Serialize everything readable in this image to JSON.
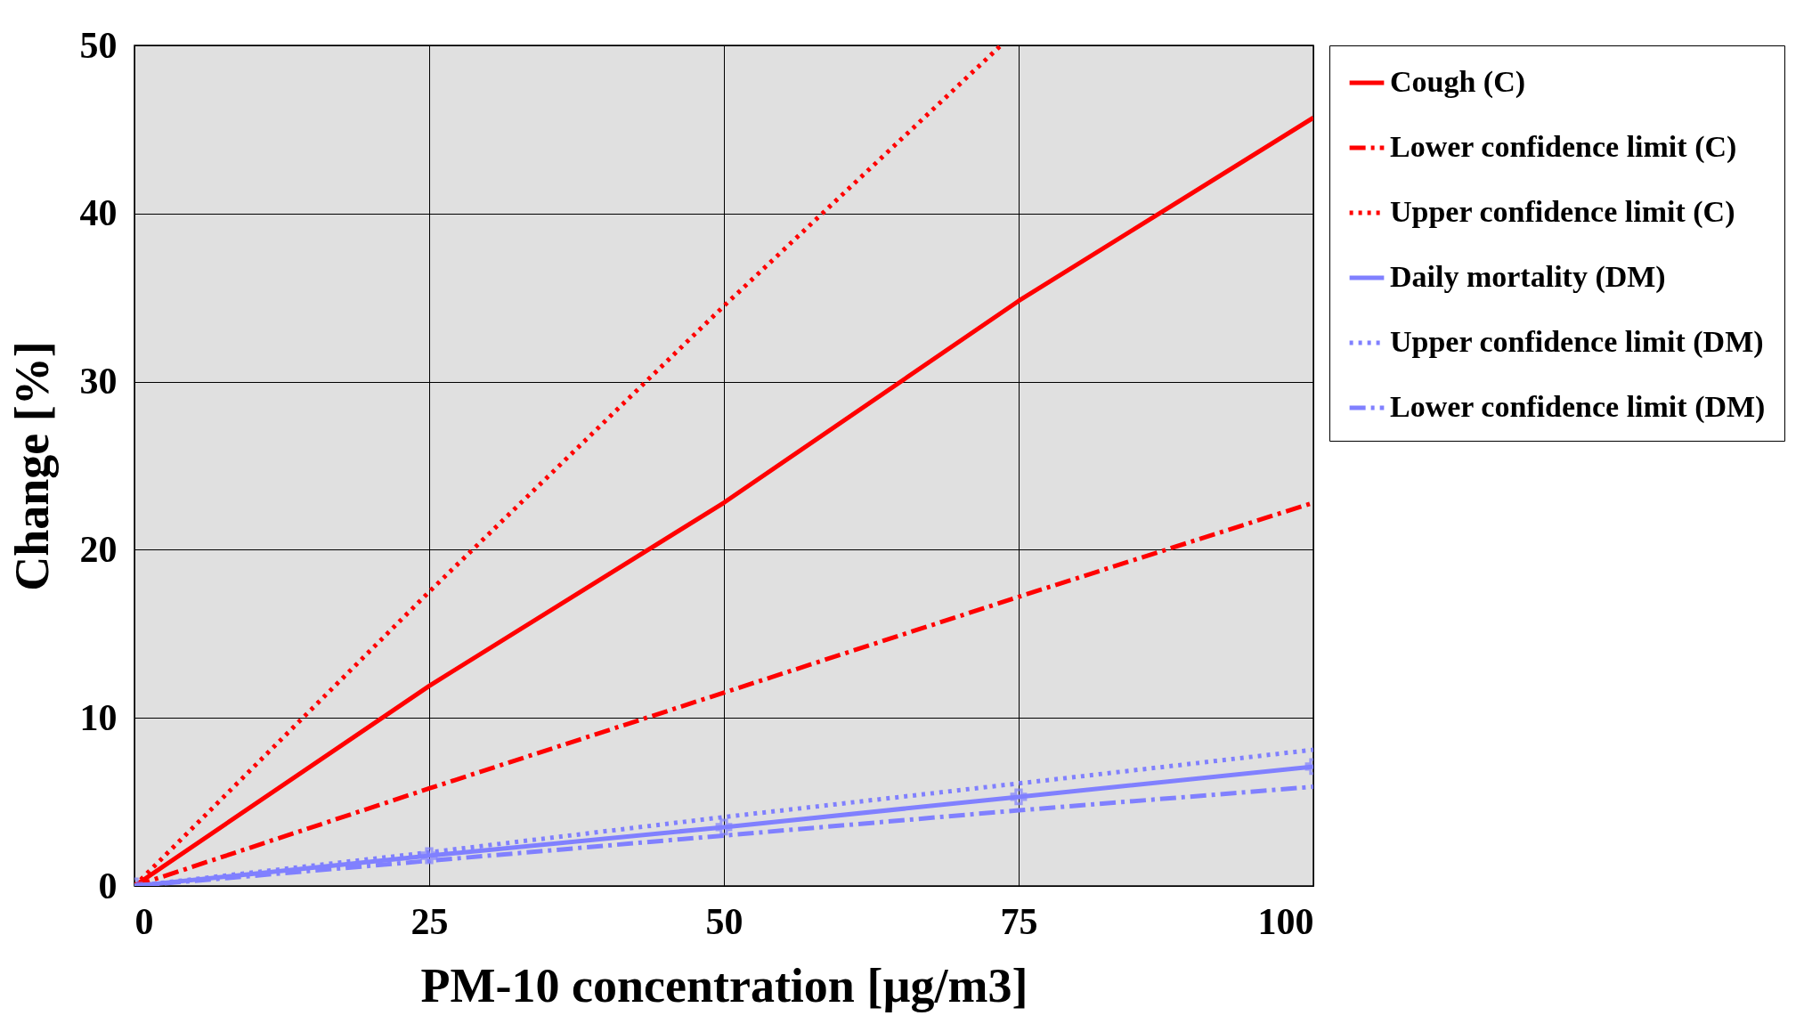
{
  "chart_data": {
    "type": "line",
    "xlabel": "PM-10 concentration [µg/m3]",
    "ylabel": "Change [%]",
    "x": [
      0,
      25,
      50,
      75,
      100
    ],
    "series": [
      {
        "name": "Cough (C)",
        "color": "#ff0000",
        "line_style": "solid",
        "values": [
          0,
          11.9,
          22.8,
          34.8,
          45.7
        ]
      },
      {
        "name": "Lower confidence limit (C)",
        "color": "#ff0000",
        "line_style": "dashed",
        "values": [
          0,
          5.8,
          11.5,
          17.2,
          22.8
        ]
      },
      {
        "name": "Upper confidence limit (C)",
        "color": "#ff0000",
        "line_style": "dotted",
        "x": [
          0,
          25,
          50,
          73.5
        ],
        "values": [
          0,
          17.5,
          34.5,
          50
        ]
      },
      {
        "name": "Daily mortality (DM)",
        "color": "#8080ff",
        "line_style": "solid",
        "marker": "cross",
        "values": [
          0,
          1.8,
          3.5,
          5.3,
          7.1
        ]
      },
      {
        "name": "Upper confidence limit (DM)",
        "color": "#8080ff",
        "line_style": "dotted",
        "values": [
          0,
          2.0,
          4.1,
          6.1,
          8.1
        ]
      },
      {
        "name": "Lower confidence limit (DM)",
        "color": "#8080ff",
        "line_style": "dashed",
        "values": [
          0,
          1.5,
          3.0,
          4.5,
          5.9
        ]
      }
    ],
    "xlim": [
      0,
      100
    ],
    "xticks": [
      0,
      25,
      50,
      75,
      100
    ],
    "ylim": [
      0,
      50
    ],
    "yticks": [
      0,
      10,
      20,
      30,
      40,
      50
    ],
    "grid": true,
    "legend": "right"
  }
}
